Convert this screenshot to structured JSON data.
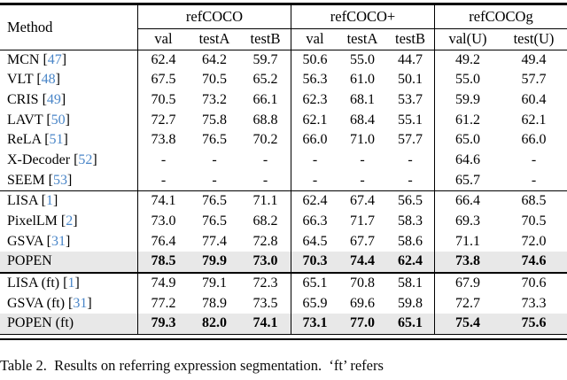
{
  "table": {
    "method_header": "Method",
    "groups": [
      {
        "label": "refCOCO",
        "cols": [
          "val",
          "testA",
          "testB"
        ]
      },
      {
        "label": "refCOCO+",
        "cols": [
          "val",
          "testA",
          "testB"
        ]
      },
      {
        "label": "refCOCOg",
        "cols": [
          "val(U)",
          "test(U)"
        ]
      }
    ],
    "sections": [
      {
        "rows": [
          {
            "name": "MCN ",
            "bo": "[",
            "cite": "47",
            "bc": "]",
            "v": [
              "62.4",
              "64.2",
              "59.7",
              "50.6",
              "55.0",
              "44.7",
              "49.2",
              "49.4"
            ]
          },
          {
            "name": "VLT ",
            "bo": "[",
            "cite": "48",
            "bc": "]",
            "v": [
              "67.5",
              "70.5",
              "65.2",
              "56.3",
              "61.0",
              "50.1",
              "55.0",
              "57.7"
            ]
          },
          {
            "name": "CRIS ",
            "bo": "[",
            "cite": "49",
            "bc": "]",
            "v": [
              "70.5",
              "73.2",
              "66.1",
              "62.3",
              "68.1",
              "53.7",
              "59.9",
              "60.4"
            ]
          },
          {
            "name": "LAVT ",
            "bo": "[",
            "cite": "50",
            "bc": "]",
            "v": [
              "72.7",
              "75.8",
              "68.8",
              "62.1",
              "68.4",
              "55.1",
              "61.2",
              "62.1"
            ]
          },
          {
            "name": "ReLA ",
            "bo": "[",
            "cite": "51",
            "bc": "]",
            "v": [
              "73.8",
              "76.5",
              "70.2",
              "66.0",
              "71.0",
              "57.7",
              "65.0",
              "66.0"
            ]
          },
          {
            "name": "X-Decoder ",
            "bo": "[",
            "cite": "52",
            "bc": "]",
            "v": [
              "-",
              "-",
              "-",
              "-",
              "-",
              "-",
              "64.6",
              "-"
            ]
          },
          {
            "name": "SEEM ",
            "bo": "[",
            "cite": "53",
            "bc": "]",
            "v": [
              "-",
              "-",
              "-",
              "-",
              "-",
              "-",
              "65.7",
              "-"
            ]
          }
        ]
      },
      {
        "rows": [
          {
            "name": "LISA ",
            "bo": "[",
            "cite": "1",
            "bc": "]",
            "v": [
              "74.1",
              "76.5",
              "71.1",
              "62.4",
              "67.4",
              "56.5",
              "66.4",
              "68.5"
            ]
          },
          {
            "name": "PixelLM ",
            "bo": "[",
            "cite": "2",
            "bc": "]",
            "v": [
              "73.0",
              "76.5",
              "68.2",
              "66.3",
              "71.7",
              "58.3",
              "69.3",
              "70.5"
            ]
          },
          {
            "name": "GSVA ",
            "bo": "[",
            "cite": "31",
            "bc": "]",
            "v": [
              "76.4",
              "77.4",
              "72.8",
              "64.5",
              "67.7",
              "58.6",
              "71.1",
              "72.0"
            ]
          },
          {
            "name": "POPEN",
            "v": [
              "78.5",
              "79.9",
              "73.0",
              "70.3",
              "74.4",
              "62.4",
              "73.8",
              "74.6"
            ],
            "highlight": true
          }
        ]
      },
      {
        "rows": [
          {
            "name": "LISA (ft) ",
            "bo": "[",
            "cite": "1",
            "bc": "]",
            "v": [
              "74.9",
              "79.1",
              "72.3",
              "65.1",
              "70.8",
              "58.1",
              "67.9",
              "70.6"
            ]
          },
          {
            "name": "GSVA (ft) ",
            "bo": "[",
            "cite": "31",
            "bc": "]",
            "v": [
              "77.2",
              "78.9",
              "73.5",
              "65.9",
              "69.6",
              "59.8",
              "72.7",
              "73.3"
            ]
          },
          {
            "name": "POPEN (ft)",
            "v": [
              "79.3",
              "82.0",
              "74.1",
              "73.1",
              "77.0",
              "65.1",
              "75.4",
              "75.6"
            ],
            "highlight": true
          }
        ]
      }
    ]
  },
  "caption": "Table 2.  Results on referring expression segmentation.  ‘ft’ refers",
  "colors": {
    "citation_blue": "#4a86c8",
    "highlight_row": "#e8e8e8",
    "rule_black": "#000000"
  }
}
